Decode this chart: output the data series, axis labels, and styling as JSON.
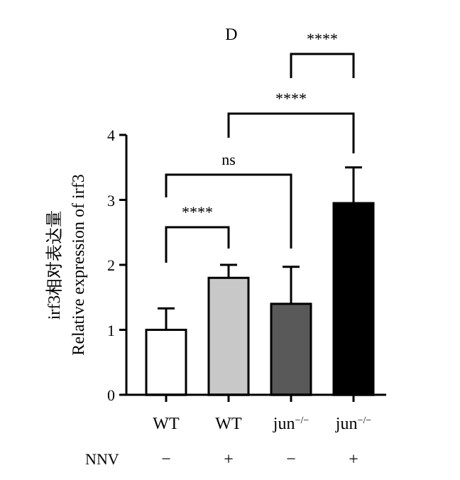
{
  "chart_data": {
    "type": "bar",
    "title": "D",
    "ylabel": "irf3相对表达量\nRelative expression of irf3",
    "categories": [
      "WT",
      "WT",
      "jun$^{−/−}$",
      "jun$^{−/−}$"
    ],
    "values": [
      1.0,
      1.8,
      1.4,
      2.95
    ],
    "colors": [
      "#ffffff",
      "#c8c8c8",
      "#595959",
      "#000000"
    ],
    "errors": [
      [
        1.0,
        1.33
      ],
      [
        1.8,
        2.0
      ],
      [
        1.4,
        1.97
      ],
      [
        2.95,
        3.5
      ]
    ],
    "ylim": [
      0,
      4
    ],
    "yticks": [
      0,
      1,
      2,
      3,
      4
    ],
    "grid": false,
    "annotations": [
      "NNV",
      "−",
      "+",
      "−",
      "+",
      "****",
      "ns",
      "****",
      "****"
    ]
  }
}
